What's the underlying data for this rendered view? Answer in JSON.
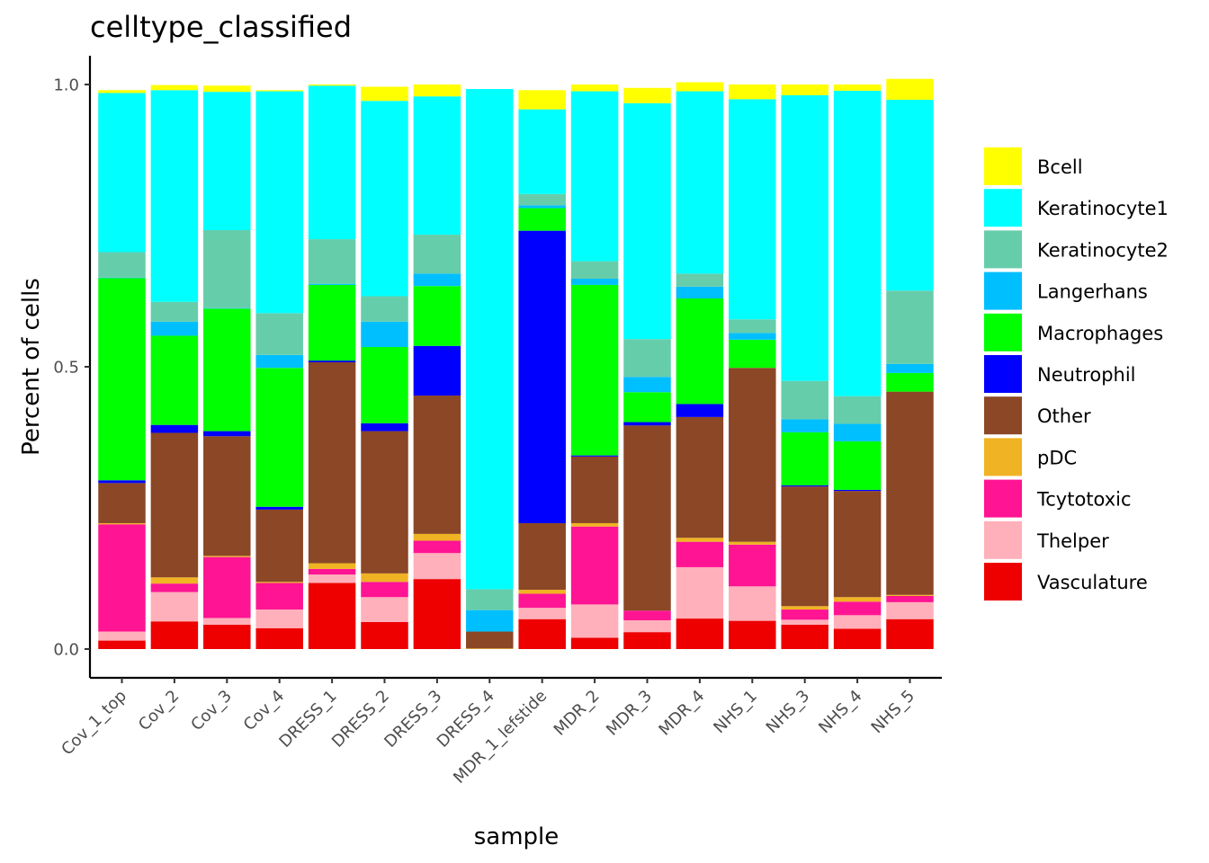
{
  "chart_data": {
    "type": "bar",
    "stacked": true,
    "title": "celltype_classified",
    "xlabel": "sample",
    "ylabel": "Percent of cells",
    "ylim": [
      0,
      1.0
    ],
    "yticks": [
      "0.0",
      "0.5",
      "1.0"
    ],
    "grid": false,
    "legend_position": "right",
    "categories": [
      "Cov_1_top",
      "Cov_2",
      "Cov_3",
      "Cov_4",
      "DRESS_1",
      "DRESS_2",
      "DRESS_3",
      "DRESS_4",
      "MDR_1_lefstide",
      "MDR_2",
      "MDR_3",
      "MDR_4",
      "NHS_1",
      "NHS_3",
      "NHS_4",
      "NHS_5"
    ],
    "stack_order_bottom_to_top": [
      "Vasculature",
      "Thelper",
      "Tcytotoxic",
      "pDC",
      "Other",
      "Neutrophil",
      "Macrophages",
      "Langerhans",
      "Keratinocyte2",
      "Keratinocyte1",
      "Bcell"
    ],
    "series": [
      {
        "name": "Bcell",
        "color": "#FFFF00",
        "values": [
          0.005,
          0.009,
          0.011,
          0.002,
          0.002,
          0.025,
          0.021,
          0.0,
          0.034,
          0.012,
          0.027,
          0.016,
          0.026,
          0.019,
          0.011,
          0.037
        ]
      },
      {
        "name": "Keratinocyte1",
        "color": "#00FFFF",
        "values": [
          0.282,
          0.375,
          0.245,
          0.393,
          0.272,
          0.346,
          0.245,
          0.886,
          0.15,
          0.301,
          0.418,
          0.323,
          0.39,
          0.506,
          0.541,
          0.338
        ]
      },
      {
        "name": "Keratinocyte2",
        "color": "#66CDAA",
        "values": [
          0.045,
          0.035,
          0.138,
          0.074,
          0.079,
          0.045,
          0.069,
          0.037,
          0.02,
          0.031,
          0.067,
          0.023,
          0.024,
          0.068,
          0.049,
          0.13
        ]
      },
      {
        "name": "Langerhans",
        "color": "#00BFFF",
        "values": [
          0.001,
          0.025,
          0.001,
          0.023,
          0.002,
          0.045,
          0.022,
          0.038,
          0.005,
          0.011,
          0.027,
          0.021,
          0.012,
          0.023,
          0.031,
          0.016
        ]
      },
      {
        "name": "Macrophages",
        "color": "#00FF00",
        "values": [
          0.358,
          0.158,
          0.217,
          0.246,
          0.134,
          0.135,
          0.106,
          0.0,
          0.04,
          0.302,
          0.053,
          0.187,
          0.05,
          0.094,
          0.086,
          0.033
        ]
      },
      {
        "name": "Neutrophil",
        "color": "#0000FF",
        "values": [
          0.005,
          0.014,
          0.009,
          0.005,
          0.003,
          0.014,
          0.088,
          0.0,
          0.518,
          0.002,
          0.006,
          0.023,
          0.0,
          0.002,
          0.002,
          0.0
        ]
      },
      {
        "name": "Other",
        "color": "#8B4726",
        "values": [
          0.071,
          0.256,
          0.212,
          0.128,
          0.356,
          0.252,
          0.245,
          0.03,
          0.118,
          0.118,
          0.328,
          0.214,
          0.308,
          0.212,
          0.188,
          0.36
        ]
      },
      {
        "name": "pDC",
        "color": "#F0B323",
        "values": [
          0.002,
          0.011,
          0.002,
          0.002,
          0.01,
          0.015,
          0.012,
          0.001,
          0.007,
          0.006,
          0.0,
          0.007,
          0.005,
          0.006,
          0.008,
          0.002
        ]
      },
      {
        "name": "Tcytotoxic",
        "color": "#FF1493",
        "values": [
          0.19,
          0.015,
          0.108,
          0.047,
          0.01,
          0.027,
          0.022,
          0.0,
          0.025,
          0.138,
          0.017,
          0.045,
          0.074,
          0.018,
          0.024,
          0.011
        ]
      },
      {
        "name": "Thelper",
        "color": "#FFB0BA",
        "values": [
          0.016,
          0.052,
          0.012,
          0.033,
          0.015,
          0.044,
          0.046,
          0.0,
          0.02,
          0.059,
          0.021,
          0.091,
          0.061,
          0.009,
          0.024,
          0.03
        ]
      },
      {
        "name": "Vasculature",
        "color": "#EE0000",
        "values": [
          0.015,
          0.049,
          0.043,
          0.037,
          0.117,
          0.048,
          0.124,
          0.0,
          0.053,
          0.02,
          0.03,
          0.054,
          0.05,
          0.043,
          0.036,
          0.053
        ]
      }
    ]
  }
}
